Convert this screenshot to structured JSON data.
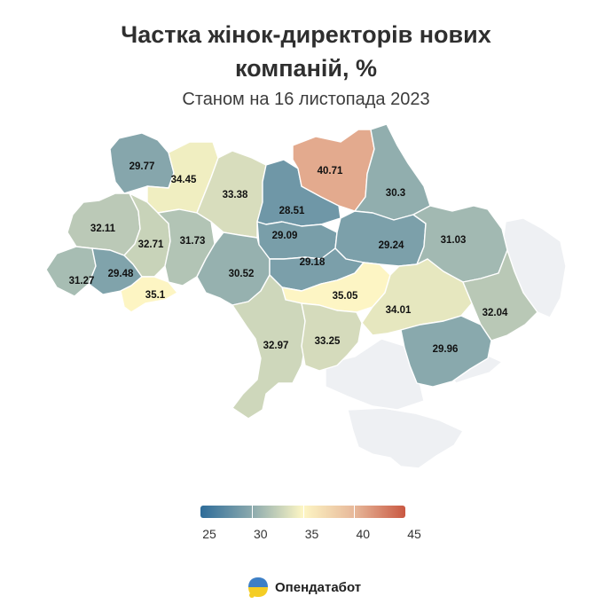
{
  "header": {
    "title_line1": "Частка жінок-директорів нових",
    "title_line2": "компаній, %",
    "subtitle": "Станом на 16 листопада 2023"
  },
  "colors": {
    "scale": [
      "#2e6c99",
      "#8aa9ad",
      "#fdf6c4",
      "#e7b89a",
      "#c95842"
    ],
    "no_data": "#eef0f3"
  },
  "legend": {
    "min": 25,
    "max": 45,
    "labels": [
      "25",
      "30",
      "35",
      "40",
      "45"
    ]
  },
  "chart_data": {
    "type": "choropleth",
    "unit": "%",
    "regions": [
      {
        "name": "Волинська",
        "value": 29.77
      },
      {
        "name": "Рівненська",
        "value": 34.45
      },
      {
        "name": "Житомирська",
        "value": 33.38
      },
      {
        "name": "Київська",
        "value": 28.51
      },
      {
        "name": "Чернігівська",
        "value": 40.71
      },
      {
        "name": "Сумська",
        "value": 30.3
      },
      {
        "name": "Львівська",
        "value": 32.11
      },
      {
        "name": "Тернопільська",
        "value": 32.71
      },
      {
        "name": "Хмельницька",
        "value": 31.73
      },
      {
        "name": "Черкаська",
        "value": 29.09
      },
      {
        "name": "Полтавська",
        "value": 29.24
      },
      {
        "name": "Харківська",
        "value": 31.03
      },
      {
        "name": "Закарпатська",
        "value": 31.27
      },
      {
        "name": "Івано-Франківська",
        "value": 29.48
      },
      {
        "name": "Чернівецька",
        "value": 35.1
      },
      {
        "name": "Вінницька",
        "value": 30.52
      },
      {
        "name": "Кіровоградська",
        "value": 29.18
      },
      {
        "name": "Дніпропетровська",
        "value": 35.05
      },
      {
        "name": "Запорізька",
        "value": 34.01
      },
      {
        "name": "Луганська",
        "value": 32.04
      },
      {
        "name": "Донецька",
        "value": 29.96
      },
      {
        "name": "Одеська",
        "value": 32.97
      },
      {
        "name": "Миколаївська",
        "value": 33.25
      }
    ],
    "no_data_regions": [
      "Херсонська",
      "Крим"
    ]
  },
  "brand": {
    "name": "Опендатабот"
  }
}
